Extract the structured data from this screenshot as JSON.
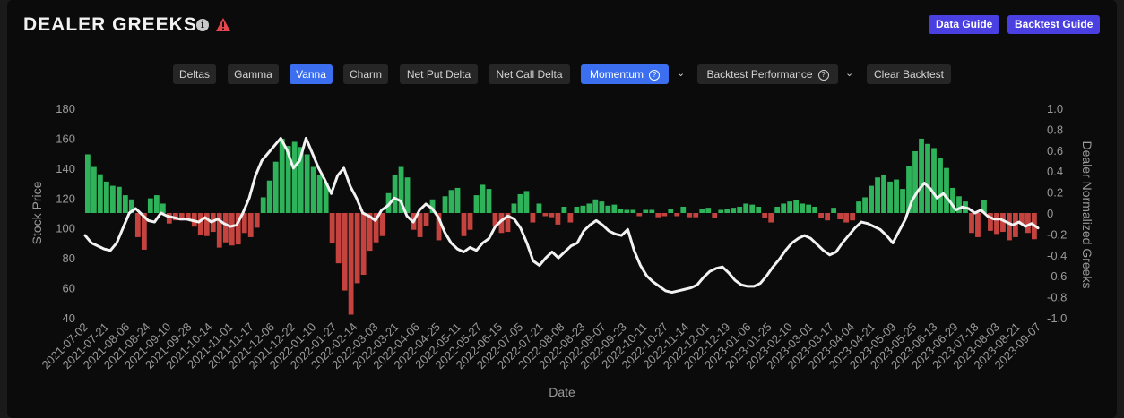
{
  "header": {
    "title": "DEALER GREEKS",
    "info_icon": "info-icon",
    "warning_icon": "warning-triangle-icon",
    "warning_color": "#e8464e",
    "buttons": {
      "data_guide": "Data Guide",
      "backtest_guide": "Backtest Guide"
    },
    "button_color": "#4a3fe0"
  },
  "tabs": [
    {
      "label": "Deltas",
      "active": false
    },
    {
      "label": "Gamma",
      "active": false
    },
    {
      "label": "Vanna",
      "active": true
    },
    {
      "label": "Charm",
      "active": false
    },
    {
      "label": "Net Put Delta",
      "active": false
    },
    {
      "label": "Net Call Delta",
      "active": false
    },
    {
      "label": "Momentum",
      "active": true,
      "help": "?",
      "dropdown": true
    },
    {
      "label": "Backtest Performance",
      "active": false,
      "help": "?",
      "dropdown": true
    },
    {
      "label": "Clear Backtest",
      "active": false
    }
  ],
  "colors": {
    "positive": "#2fb35a",
    "negative": "#c4433f",
    "price_line": "#f2f2f2",
    "active_tab": "#3b6ff0"
  },
  "chart_data": {
    "type": "bar",
    "xlabel": "Date",
    "ylabel_left": "Stock Price",
    "ylabel_right": "Dealer Normalized Greeks",
    "y_left_range": [
      40,
      180
    ],
    "y_left_ticks": [
      40,
      60,
      80,
      100,
      120,
      140,
      160,
      180
    ],
    "y_right_range": [
      -1.0,
      1.0
    ],
    "y_right_ticks": [
      "-1.0",
      "-0.8",
      "-0.6",
      "-0.4",
      "-0.2",
      "0",
      "0.2",
      "0.4",
      "0.6",
      "0.8",
      "1.0"
    ],
    "x_ticks": [
      "2021-07-02",
      "2021-07-21",
      "2021-08-06",
      "2021-08-24",
      "2021-09-10",
      "2021-09-28",
      "2021-10-14",
      "2021-11-01",
      "2021-11-17",
      "2021-12-06",
      "2021-12-22",
      "2022-01-10",
      "2022-01-27",
      "2022-02-14",
      "2022-03-03",
      "2022-03-21",
      "2022-04-06",
      "2022-04-25",
      "2022-05-11",
      "2022-05-27",
      "2022-06-15",
      "2022-07-05",
      "2022-07-21",
      "2022-08-08",
      "2022-08-23",
      "2022-09-07",
      "2022-09-23",
      "2022-10-11",
      "2022-10-27",
      "2022-11-14",
      "2022-12-01",
      "2022-12-19",
      "2023-01-06",
      "2023-01-25",
      "2023-02-10",
      "2023-03-01",
      "2023-03-17",
      "2023-04-04",
      "2023-04-21",
      "2023-05-09",
      "2023-05-25",
      "2023-06-13",
      "2023-06-29",
      "2023-07-18",
      "2023-08-03",
      "2023-08-21",
      "2023-09-07"
    ],
    "series": [
      {
        "kind": "line",
        "axis": "left",
        "values": [
          95,
          90,
          88,
          86,
          85,
          90,
          100,
          110,
          113,
          109,
          105,
          104,
          110,
          108,
          107,
          106,
          106,
          105,
          104,
          107,
          104,
          106,
          103,
          101,
          102,
          110,
          120,
          135,
          145,
          150,
          155,
          160,
          152,
          140,
          145,
          160,
          150,
          140,
          132,
          123,
          135,
          140,
          128,
          120,
          110,
          108,
          105,
          112,
          115,
          120,
          118,
          108,
          104,
          112,
          116,
          113,
          107,
          97,
          90,
          86,
          84,
          87,
          85,
          90,
          93,
          101,
          105,
          108,
          106,
          100,
          90,
          78,
          75,
          80,
          84,
          80,
          84,
          88,
          90,
          98,
          102,
          105,
          102,
          98,
          96,
          95,
          99,
          85,
          75,
          68,
          64,
          61,
          58,
          57,
          58,
          59,
          60,
          62,
          67,
          71,
          73,
          74,
          70,
          65,
          62,
          61,
          61,
          63,
          68,
          74,
          79,
          85,
          90,
          93,
          95,
          93,
          89,
          85,
          82,
          84,
          90,
          95,
          100,
          104,
          103,
          101,
          99,
          95,
          90,
          98,
          106,
          118,
          125,
          130,
          126,
          120,
          123,
          118,
          112,
          114,
          113,
          110,
          112,
          108,
          106,
          106,
          104,
          102,
          104,
          101,
          103,
          100
        ]
      },
      {
        "kind": "bar",
        "axis": "right",
        "values": [
          0.56,
          0.44,
          0.37,
          0.3,
          0.26,
          0.25,
          0.17,
          0.13,
          -0.23,
          -0.35,
          0.14,
          0.17,
          0.09,
          -0.1,
          -0.07,
          -0.07,
          -0.06,
          -0.13,
          -0.21,
          -0.22,
          -0.18,
          -0.33,
          -0.28,
          -0.31,
          -0.3,
          -0.19,
          -0.23,
          -0.14,
          0.15,
          0.31,
          0.49,
          0.71,
          0.64,
          0.68,
          0.63,
          0.56,
          0.44,
          0.36,
          0.29,
          -0.29,
          -0.48,
          -0.74,
          -0.97,
          -0.67,
          -0.59,
          -0.36,
          -0.28,
          -0.22,
          0.19,
          0.36,
          0.44,
          0.34,
          -0.16,
          -0.23,
          -0.12,
          0.13,
          -0.26,
          0.16,
          0.22,
          0.24,
          -0.22,
          -0.16,
          0.17,
          0.27,
          0.23,
          -0.13,
          -0.19,
          -0.18,
          0.09,
          0.18,
          0.21,
          -0.09,
          0.09,
          -0.03,
          -0.04,
          -0.11,
          0.06,
          -0.09,
          0.06,
          0.07,
          0.09,
          0.13,
          0.11,
          0.07,
          0.08,
          0.04,
          0.03,
          0.03,
          -0.03,
          0.03,
          0.03,
          -0.04,
          -0.03,
          0.04,
          -0.03,
          0.06,
          -0.04,
          -0.04,
          0.04,
          0.05,
          -0.05,
          0.03,
          0.04,
          0.05,
          0.06,
          0.09,
          0.08,
          0.06,
          -0.05,
          -0.09,
          0.06,
          0.09,
          0.11,
          0.12,
          0.09,
          0.08,
          0.06,
          -0.05,
          -0.07,
          0.05,
          -0.06,
          -0.09,
          -0.07,
          0.11,
          0.15,
          0.26,
          0.34,
          0.36,
          0.3,
          0.32,
          0.23,
          0.45,
          0.59,
          0.71,
          0.66,
          0.62,
          0.53,
          0.43,
          0.24,
          0.16,
          0.11,
          -0.19,
          -0.23,
          0.12,
          -0.17,
          -0.2,
          -0.18,
          -0.26,
          -0.23,
          -0.11,
          -0.19,
          -0.25
        ]
      }
    ]
  }
}
